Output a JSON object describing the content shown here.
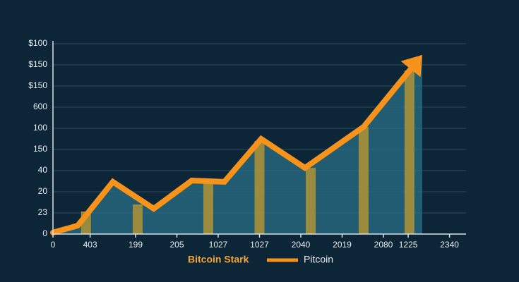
{
  "chart_data": {
    "type": "line",
    "xlim": [
      0,
      10
    ],
    "xticks": [
      0,
      {
        "value": 0.9,
        "label": "403"
      },
      {
        "value": 2,
        "label": "199"
      },
      {
        "value": 3,
        "label": "205"
      },
      {
        "value": 4,
        "label": "1027"
      },
      {
        "value": 5,
        "label": "1027"
      },
      {
        "value": 6,
        "label": "2040"
      },
      {
        "value": 7,
        "label": "2019"
      },
      {
        "value": 8,
        "label": "2080"
      },
      {
        "value": 8.6,
        "label": "1225"
      },
      {
        "value": 9.6,
        "label": "2340"
      }
    ],
    "ylim": [
      0,
      9
    ],
    "yticks": [
      0,
      {
        "value": 1,
        "label": "23"
      },
      {
        "value": 2,
        "label": "20"
      },
      {
        "value": 3,
        "label": "40"
      },
      {
        "value": 4,
        "label": "150"
      },
      {
        "value": 5,
        "label": "100"
      },
      {
        "value": 6,
        "label": "600"
      },
      {
        "value": 7,
        "label": "$150"
      },
      {
        "value": 8,
        "label": "$150"
      },
      {
        "value": 9,
        "label": "$100"
      }
    ],
    "grid": true,
    "series": [
      {
        "name": "Bitcoin Stark",
        "type": "bar",
        "color": "#a8903a",
        "x": [
          0.8,
          2.05,
          3.76,
          5.0,
          6.24,
          7.52,
          8.63
        ],
        "values": [
          1.07,
          1.4,
          2.47,
          4.4,
          3.13,
          5.07,
          7.73
        ]
      },
      {
        "name": "Pitcoin",
        "type": "line",
        "color": "#f7931a",
        "area_color": "#2a6f86",
        "x": [
          0,
          0.6,
          1.45,
          2.44,
          3.36,
          4.15,
          5.04,
          6.1,
          7.52,
          8.94
        ],
        "values": [
          0.07,
          0.4,
          2.47,
          1.2,
          2.53,
          2.47,
          4.5,
          3.13,
          5.07,
          8.47
        ]
      }
    ]
  }
}
